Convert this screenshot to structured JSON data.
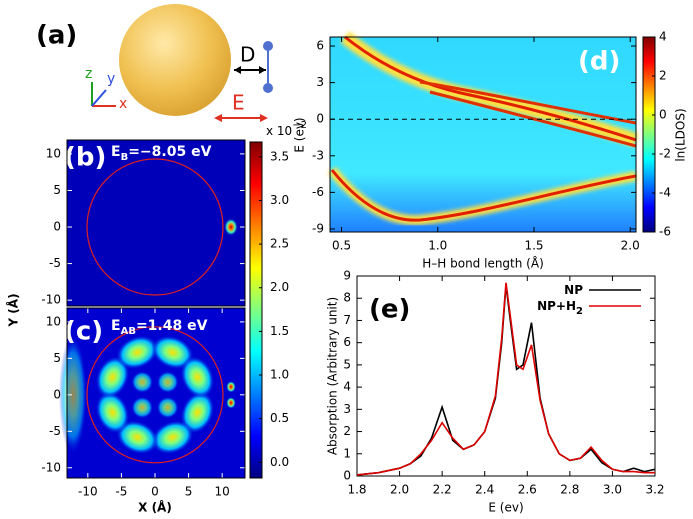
{
  "panel_a": {
    "label": "(a)",
    "distance": "D",
    "field": "E",
    "axes": [
      "x",
      "y",
      "z"
    ]
  },
  "chart_data": [
    {
      "type": "heatmap",
      "panel": "(b)",
      "annotation": [
        "E",
        "B",
        "=−8.05 eV"
      ],
      "colormap": "jet",
      "xlim": [
        -13.1,
        13.4
      ],
      "ylim": [
        -10.8,
        11.9
      ],
      "yticks": [
        10,
        5,
        0,
        -5,
        -10
      ]
    },
    {
      "type": "heatmap",
      "panel": "(c)",
      "annotation": [
        "E",
        "AB",
        "=1.48 eV"
      ],
      "colormap": "jet",
      "xlim": [
        -13.1,
        13.4
      ],
      "ylim": [
        -11.4,
        11.9
      ],
      "xticks": [
        -10,
        -5,
        0,
        5,
        10
      ],
      "yticks": [
        10,
        5,
        0,
        -5,
        -10
      ],
      "xlabel": "X (Å)",
      "ylabel": "Y (Å)"
    },
    {
      "type": "colorbar",
      "colormap": "jet",
      "scale": [
        "x 10",
        "−2"
      ],
      "lim": [
        -0.18,
        3.67
      ],
      "ticks": [
        {
          "value": 0,
          "label": "0.0"
        },
        0.5,
        {
          "value": 1,
          "label": "1.0"
        },
        1.5,
        {
          "value": 2,
          "label": "2.0"
        },
        2.5,
        {
          "value": 3,
          "label": "3.0"
        },
        3.5
      ]
    },
    {
      "type": "heatmap",
      "panel": "(d)",
      "colormap": "jet",
      "xlabel": "H–H bond length (Å)",
      "ylabel": "E (ev)",
      "xlim": [
        0.44,
        2.03
      ],
      "xticks": [
        0.5,
        {
          "value": 1,
          "label": "1.0"
        },
        1.5,
        {
          "value": 2,
          "label": "2.0"
        }
      ],
      "ylim": [
        -9.25,
        6.74
      ],
      "yticks": [
        6,
        3,
        0,
        -3,
        -6,
        -9
      ],
      "colorbar": {
        "label": "ln(LDOS)",
        "lim": [
          -6,
          4
        ],
        "ticks": [
          4,
          2,
          0,
          -2,
          -4,
          -6
        ]
      }
    },
    {
      "type": "line",
      "panel": "(e)",
      "xlabel": "E (ev)",
      "ylabel": "Absorption (Arbitrary unit)",
      "legend": "upper right",
      "xlim": [
        1.8,
        3.2
      ],
      "xticks": [
        1.8,
        {
          "value": 2,
          "label": "2.0"
        },
        2.2,
        2.4,
        2.6,
        2.8,
        {
          "value": 3,
          "label": "3.0"
        },
        3.2
      ],
      "ylim": [
        0,
        9
      ],
      "yticks": [
        0,
        1,
        2,
        3,
        4,
        5,
        6,
        7,
        8,
        9
      ],
      "x": [
        1.8,
        1.9,
        2.0,
        2.05,
        2.1,
        2.15,
        2.2,
        2.25,
        2.3,
        2.35,
        2.4,
        2.45,
        2.48,
        2.5,
        2.52,
        2.55,
        2.58,
        2.62,
        2.66,
        2.7,
        2.75,
        2.8,
        2.85,
        2.9,
        2.95,
        3.0,
        3.05,
        3.1,
        3.15,
        3.2
      ],
      "series": [
        {
          "name": [
            "NP"
          ],
          "color": "#000000",
          "values": [
            0.05,
            0.15,
            0.35,
            0.55,
            0.9,
            1.7,
            3.1,
            1.6,
            1.2,
            1.4,
            2.0,
            3.5,
            6.0,
            8.6,
            7.0,
            4.8,
            5.0,
            6.9,
            3.5,
            1.9,
            1.0,
            0.7,
            0.8,
            1.2,
            0.6,
            0.3,
            0.2,
            0.35,
            0.2,
            0.3
          ]
        },
        {
          "name": [
            "NP+H",
            "2"
          ],
          "color": "#dd0000",
          "values": [
            0.05,
            0.15,
            0.35,
            0.55,
            1.0,
            1.6,
            2.4,
            1.7,
            1.2,
            1.4,
            2.0,
            3.6,
            6.2,
            8.7,
            7.2,
            5.0,
            4.8,
            5.9,
            3.4,
            1.9,
            1.0,
            0.7,
            0.8,
            1.3,
            0.7,
            0.3,
            0.2,
            0.2,
            0.15,
            0.15
          ]
        }
      ]
    }
  ]
}
